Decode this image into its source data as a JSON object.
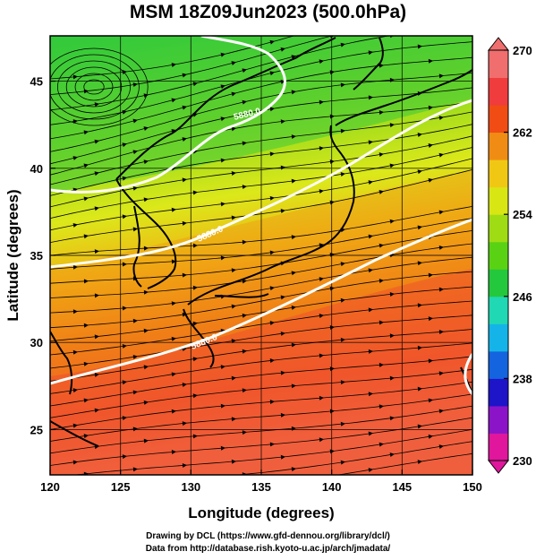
{
  "title": "MSM 18Z09Jun2023 (500.0hPa)",
  "axes": {
    "xlabel": "Longitude (degrees)",
    "ylabel": "Latitude  (degrees)",
    "x_ticks": [
      "120",
      "125",
      "130",
      "135",
      "140",
      "145",
      "150"
    ],
    "y_ticks": [
      "25",
      "30",
      "35",
      "40",
      "45"
    ],
    "xlim": [
      120,
      150
    ],
    "ylim": [
      22.4,
      47.6
    ]
  },
  "colorbar": {
    "range": [
      230,
      270
    ],
    "tick_labels": [
      "270",
      "262",
      "254",
      "246",
      "238",
      "230"
    ],
    "colors": [
      "#e0169c",
      "#8b14c8",
      "#1e14c8",
      "#1464e0",
      "#14b4e8",
      "#20d8b4",
      "#24c83c",
      "#5ad214",
      "#a0dc14",
      "#d8e614",
      "#f0c814",
      "#f08c14",
      "#f04c14",
      "#f03c3c",
      "#f06e6e"
    ]
  },
  "contours": {
    "label": "5880.0",
    "levels": [
      {
        "label": "5880.0",
        "visible_label": "5880.0"
      },
      {
        "label": "5880.0",
        "visible_label": "5880.0"
      },
      {
        "label": "5880.0",
        "visible_label": "5880.0"
      }
    ]
  },
  "chart_data": {
    "type": "heatmap",
    "title": "MSM 18Z09Jun2023 (500.0hPa)",
    "xlabel": "Longitude (degrees)",
    "ylabel": "Latitude  (degrees)",
    "xlim": [
      120,
      150
    ],
    "ylim": [
      22.4,
      47.6
    ],
    "x_ticks": [
      120,
      125,
      130,
      135,
      140,
      145,
      150
    ],
    "y_ticks": [
      25,
      30,
      35,
      40,
      45
    ],
    "colorbar_range": [
      230,
      270
    ],
    "colorbar_ticks": [
      270,
      262,
      254,
      246,
      238,
      230
    ],
    "field_description": "temperature (K) at 500 hPa with wind streamlines; warm (orange-red) in south, green in north",
    "contour_labels": [
      "5880.0",
      "5880.0",
      "5880.0"
    ]
  },
  "footer": {
    "line1": "Drawing by DCL (https://www.gfd-dennou.org/library/dcl/)",
    "line2": "Data from http://database.rish.kyoto-u.ac.jp/arch/jmadata/"
  }
}
